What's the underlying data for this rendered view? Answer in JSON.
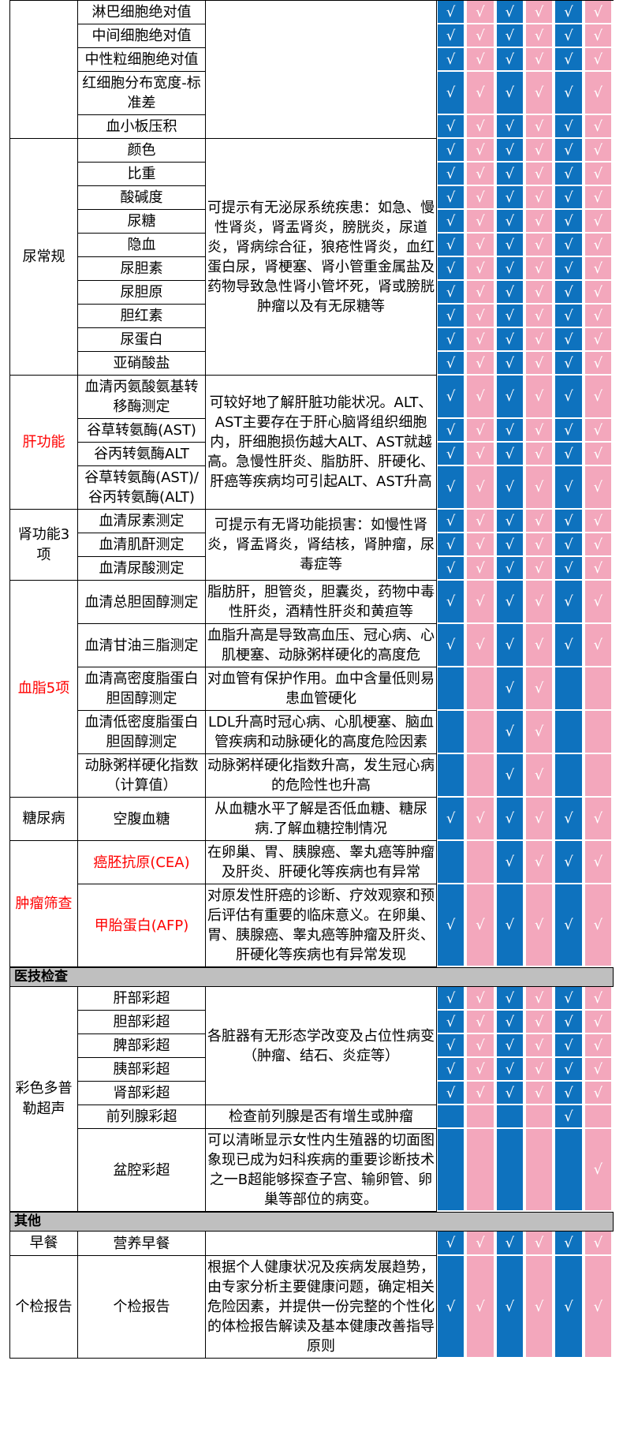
{
  "check_mark": "√",
  "colors": {
    "blue": "#0E72BE",
    "pink": "#F3A7BC",
    "header_gray": "#BFBFBF",
    "red": "#FF0000",
    "border": "#000000",
    "column_pattern": [
      "#0E72BE",
      "#F3A7BC",
      "#0E72BE",
      "#F3A7BC",
      "#0E72BE",
      "#F3A7BC"
    ]
  },
  "package_columns": 6,
  "blocks": [
    {
      "type": "section",
      "category": "",
      "groups": [
        {
          "desc": "",
          "rows": [
            {
              "item": "淋巴细胞绝对值",
              "checks": [
                1,
                1,
                1,
                1,
                1,
                1
              ]
            },
            {
              "item": "中间细胞绝对值",
              "checks": [
                1,
                1,
                1,
                1,
                1,
                1
              ]
            },
            {
              "item": "中性粒细胞绝对值",
              "checks": [
                1,
                1,
                1,
                1,
                1,
                1
              ]
            },
            {
              "item": "红细胞分布宽度-标准差",
              "checks": [
                1,
                1,
                1,
                1,
                1,
                1
              ]
            },
            {
              "item": "血小板压积",
              "checks": [
                1,
                1,
                1,
                1,
                1,
                1
              ]
            }
          ]
        }
      ]
    },
    {
      "type": "section",
      "category": "尿常规",
      "groups": [
        {
          "desc": "可提示有无泌尿系统疾患：如急、慢性肾炎，肾盂肾炎，膀胱炎，尿道炎，肾病综合征，狼疮性肾炎，血红蛋白尿，肾梗塞、肾小管重金属盐及药物导致急性肾小管坏死，肾或膀胱肿瘤以及有无尿糖等",
          "rows": [
            {
              "item": "颜色",
              "checks": [
                1,
                1,
                1,
                1,
                1,
                1
              ]
            },
            {
              "item": "比重",
              "checks": [
                1,
                1,
                1,
                1,
                1,
                1
              ]
            },
            {
              "item": "酸碱度",
              "checks": [
                1,
                1,
                1,
                1,
                1,
                1
              ]
            },
            {
              "item": "尿糖",
              "checks": [
                1,
                1,
                1,
                1,
                1,
                1
              ]
            },
            {
              "item": "隐血",
              "checks": [
                1,
                1,
                1,
                1,
                1,
                1
              ]
            },
            {
              "item": "尿胆素",
              "checks": [
                1,
                1,
                1,
                1,
                1,
                1
              ]
            },
            {
              "item": "尿胆原",
              "checks": [
                1,
                1,
                1,
                1,
                1,
                1
              ]
            },
            {
              "item": "胆红素",
              "checks": [
                1,
                1,
                1,
                1,
                1,
                1
              ]
            },
            {
              "item": "尿蛋白",
              "checks": [
                1,
                1,
                1,
                1,
                1,
                1
              ]
            },
            {
              "item": "亚硝酸盐",
              "checks": [
                1,
                1,
                1,
                1,
                1,
                1
              ]
            }
          ]
        }
      ]
    },
    {
      "type": "section",
      "category": "肝功能",
      "red": true,
      "groups": [
        {
          "desc": "可较好地了解肝脏功能状况。ALT、AST主要存在于肝心脑肾组织细胞内，肝细胞损伤越大ALT、AST就越高。急慢性肝炎、脂肪肝、肝硬化、肝癌等疾病均可引起ALT、AST升高",
          "rows": [
            {
              "item": "血清丙氨酸氨基转移酶测定",
              "checks": [
                1,
                1,
                1,
                1,
                1,
                1
              ]
            },
            {
              "item": "谷草转氨酶(AST)",
              "checks": [
                1,
                1,
                1,
                1,
                1,
                1
              ]
            },
            {
              "item": "谷丙转氨酶ALT",
              "checks": [
                1,
                1,
                1,
                1,
                1,
                1
              ]
            },
            {
              "item": "谷草转氨酶(AST)/谷丙转氨酶(ALT)",
              "checks": [
                1,
                1,
                1,
                1,
                1,
                1
              ]
            }
          ]
        }
      ]
    },
    {
      "type": "section",
      "category": "肾功能3项",
      "groups": [
        {
          "desc": "可提示有无肾功能损害：如慢性肾炎，肾盂肾炎，肾结核，肾肿瘤，尿毒症等",
          "rows": [
            {
              "item": "血清尿素测定",
              "checks": [
                1,
                1,
                1,
                1,
                1,
                1
              ]
            },
            {
              "item": "血清肌酐测定",
              "checks": [
                1,
                1,
                1,
                1,
                1,
                1
              ]
            },
            {
              "item": "血清尿酸测定",
              "checks": [
                1,
                1,
                1,
                1,
                1,
                1
              ]
            }
          ]
        }
      ]
    },
    {
      "type": "section",
      "category": "血脂5项",
      "red": true,
      "groups": [
        {
          "desc": "脂肪肝，胆管炎，胆囊炎，药物中毒性肝炎，酒精性肝炎和黄疸等",
          "rows": [
            {
              "item": "血清总胆固醇测定",
              "checks": [
                1,
                1,
                1,
                1,
                1,
                1
              ]
            }
          ]
        },
        {
          "desc": "血脂升高是导致高血压、冠心病、心肌梗塞、动脉粥样硬化的高度危",
          "rows": [
            {
              "item": "血清甘油三脂测定",
              "checks": [
                1,
                1,
                1,
                1,
                1,
                1
              ]
            }
          ]
        },
        {
          "desc": "对血管有保护作用。血中含量低则易患血管硬化",
          "rows": [
            {
              "item": "血清高密度脂蛋白胆固醇测定",
              "checks": [
                0,
                0,
                1,
                1,
                0,
                0
              ]
            }
          ]
        },
        {
          "desc": "LDL升高时冠心病、心肌梗塞、脑血管疾病和动脉硬化的高度危险因素",
          "rows": [
            {
              "item": "血清低密度脂蛋白胆固醇测定",
              "checks": [
                0,
                0,
                1,
                1,
                0,
                0
              ]
            }
          ]
        },
        {
          "desc": "动脉粥样硬化指数升高，发生冠心病的危险性也升高",
          "rows": [
            {
              "item": "动脉粥样硬化指数（计算值）",
              "checks": [
                0,
                0,
                1,
                1,
                0,
                0
              ]
            }
          ]
        }
      ]
    },
    {
      "type": "section",
      "category": "糖尿病",
      "groups": [
        {
          "desc": "从血糖水平了解是否低血糖、糖尿病.了解血糖控制情况",
          "rows": [
            {
              "item": "空腹血糖",
              "checks": [
                1,
                1,
                1,
                1,
                1,
                1
              ]
            }
          ]
        }
      ]
    },
    {
      "type": "section",
      "category": "肿瘤筛查",
      "red": true,
      "groups": [
        {
          "desc": "在卵巢、胃、胰腺癌、睾丸癌等肿瘤及肝炎、肝硬化等疾病也有异常",
          "rows": [
            {
              "item": "癌胚抗原(CEA)",
              "red": true,
              "checks": [
                0,
                0,
                1,
                1,
                1,
                1
              ]
            }
          ]
        },
        {
          "desc": "对原发性肝癌的诊断、疗效观察和预后评估有重要的临床意义。在卵巢、胃、胰腺癌、睾丸癌等肿瘤及肝炎、肝硬化等疾病也有异常发现",
          "rows": [
            {
              "item": "甲胎蛋白(AFP)",
              "red": true,
              "checks": [
                1,
                1,
                1,
                1,
                1,
                1
              ]
            }
          ]
        }
      ]
    },
    {
      "type": "bar",
      "label": "医技检查"
    },
    {
      "type": "section",
      "category": "彩色多普勒超声",
      "groups": [
        {
          "desc": "各脏器有无形态学改变及占位性病变（肿瘤、结石、炎症等）",
          "rows": [
            {
              "item": "肝部彩超",
              "checks": [
                1,
                1,
                1,
                1,
                1,
                1
              ]
            },
            {
              "item": "胆部彩超",
              "checks": [
                1,
                1,
                1,
                1,
                1,
                1
              ]
            },
            {
              "item": "脾部彩超",
              "checks": [
                1,
                1,
                1,
                1,
                1,
                1
              ]
            },
            {
              "item": "胰部彩超",
              "checks": [
                1,
                1,
                1,
                1,
                1,
                1
              ]
            },
            {
              "item": "肾部彩超",
              "checks": [
                1,
                1,
                1,
                1,
                1,
                1
              ]
            }
          ]
        },
        {
          "desc": "检查前列腺是否有增生或肿瘤",
          "rows": [
            {
              "item": "前列腺彩超",
              "checks": [
                0,
                0,
                0,
                0,
                1,
                0
              ]
            }
          ]
        },
        {
          "desc": "可以清晰显示女性内生殖器的切面图象现已成为妇科疾病的重要诊断技术之一B超能够探查子宫、输卵管、卵巢等部位的病变。",
          "rows": [
            {
              "item": "盆腔彩超",
              "checks": [
                0,
                0,
                0,
                0,
                0,
                1
              ]
            }
          ]
        }
      ]
    },
    {
      "type": "bar",
      "label": "其他"
    },
    {
      "type": "section",
      "category": "早餐",
      "groups": [
        {
          "desc": "",
          "rows": [
            {
              "item": "营养早餐",
              "checks": [
                1,
                1,
                1,
                1,
                1,
                1
              ]
            }
          ]
        }
      ]
    },
    {
      "type": "section",
      "category": "个检报告",
      "groups": [
        {
          "desc": "根据个人健康状况及疾病发展趋势，由专家分析主要健康问题，确定相关危险因素，并提供一份完整的个性化的体检报告解读及基本健康改善指导原则",
          "rows": [
            {
              "item": "个检报告",
              "checks": [
                1,
                1,
                1,
                1,
                1,
                1
              ]
            }
          ]
        }
      ]
    }
  ]
}
